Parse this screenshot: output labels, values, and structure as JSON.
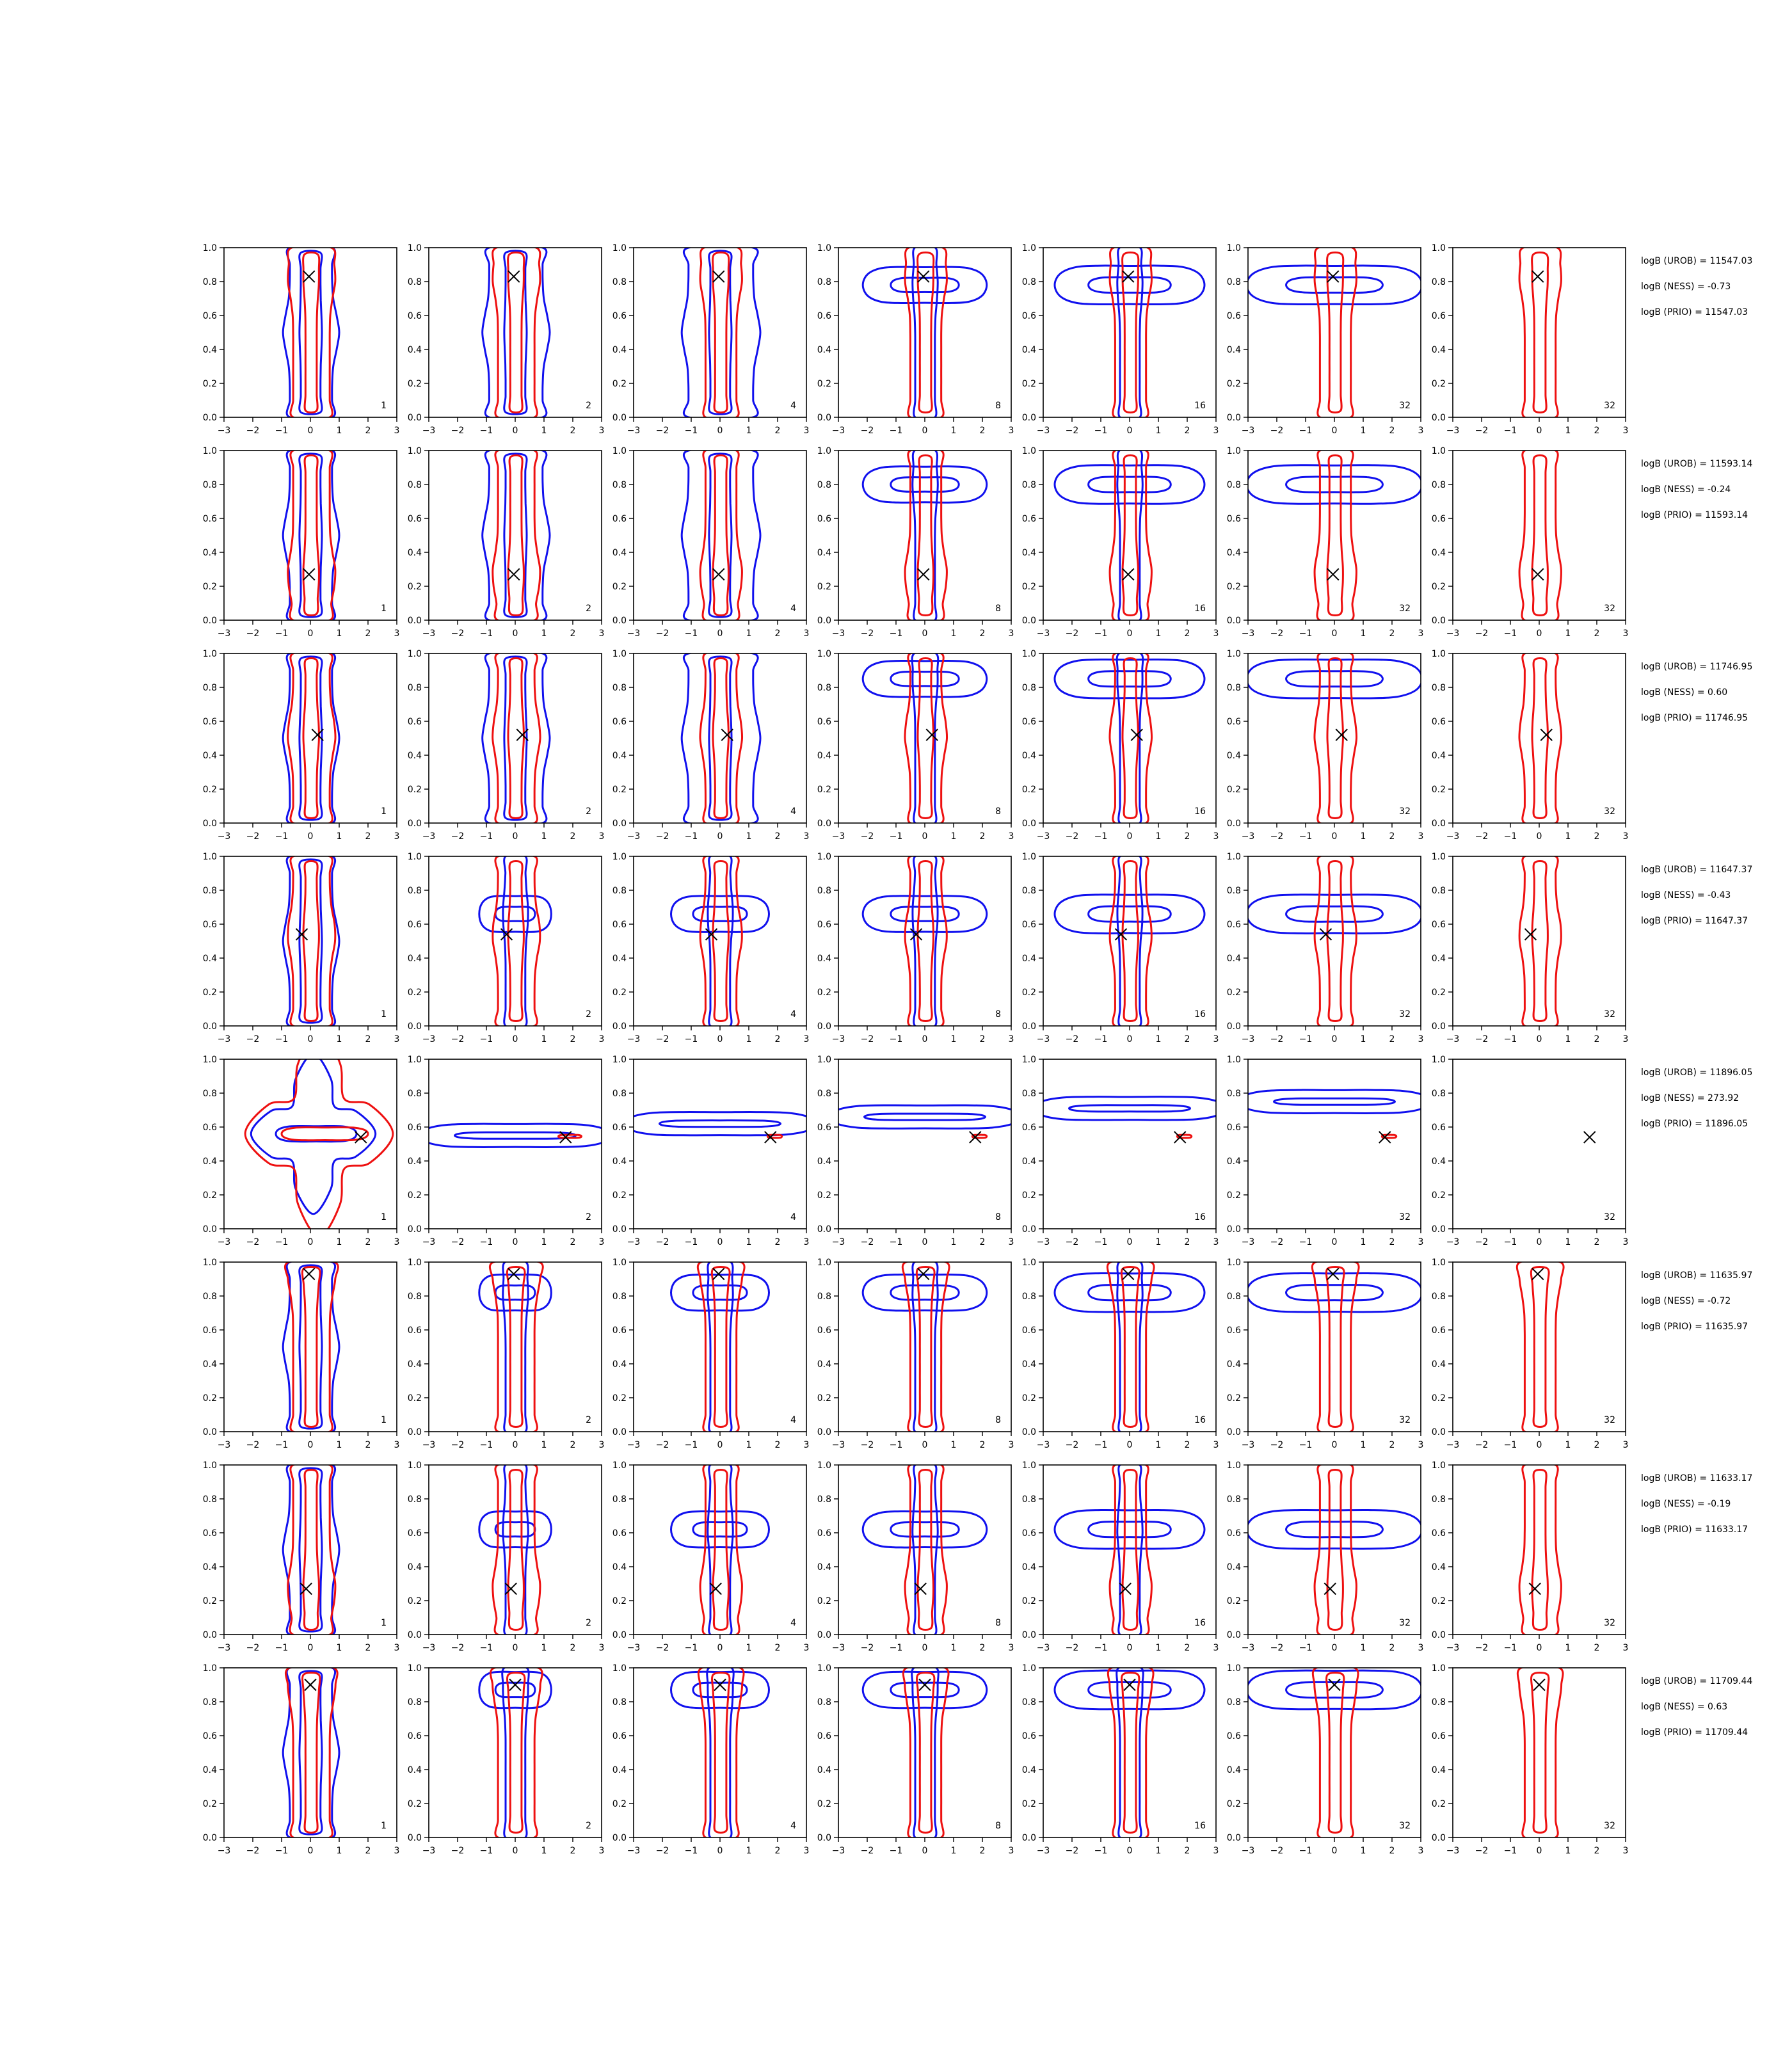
{
  "figure": {
    "x_ticks": [
      "−3",
      "−2",
      "−1",
      "0",
      "1",
      "2",
      "3"
    ],
    "y_ticks": [
      "0.0",
      "0.2",
      "0.4",
      "0.6",
      "0.8",
      "1.0"
    ],
    "panel_labels": [
      "1",
      "2",
      "4",
      "8",
      "16",
      "32",
      "32"
    ],
    "colors": {
      "blue": "#1010ee",
      "red": "#ee1010",
      "marker": "#000000"
    }
  },
  "chart_data": {
    "type": "contour-grid",
    "xlim": [
      -3,
      3
    ],
    "ylim": [
      0,
      1
    ],
    "rows": [
      {
        "marker": {
          "x": -0.05,
          "y": 0.83
        },
        "annotations": [
          "logB (UROB) = 11547.03",
          "logB (NESS) = -0.73",
          "logB (PRIO) = 11547.03"
        ]
      },
      {
        "marker": {
          "x": -0.05,
          "y": 0.27
        },
        "annotations": [
          "logB (UROB) = 11593.14",
          "logB (NESS) = -0.24",
          "logB (PRIO) = 11593.14"
        ]
      },
      {
        "marker": {
          "x": 0.25,
          "y": 0.52
        },
        "annotations": [
          "logB (UROB) = 11746.95",
          "logB (NESS) = 0.60",
          "logB (PRIO) = 11746.95"
        ]
      },
      {
        "marker": {
          "x": -0.3,
          "y": 0.54
        },
        "annotations": [
          "logB (UROB) = 11647.37",
          "logB (NESS) = -0.43",
          "logB (PRIO) = 11647.37"
        ]
      },
      {
        "marker": {
          "x": 1.75,
          "y": 0.54
        },
        "annotations": [
          "logB (UROB) = 11896.05",
          "logB (NESS) = 273.92",
          "logB (PRIO) = 11896.05"
        ]
      },
      {
        "marker": {
          "x": -0.05,
          "y": 0.93
        },
        "annotations": [
          "logB (UROB) = 11635.97",
          "logB (NESS) = -0.72",
          "logB (PRIO) = 11635.97"
        ]
      },
      {
        "marker": {
          "x": -0.15,
          "y": 0.27
        },
        "annotations": [
          "logB (UROB) = 11633.17",
          "logB (NESS) = -0.19",
          "logB (PRIO) = 11633.17"
        ]
      },
      {
        "marker": {
          "x": 0.0,
          "y": 0.9
        },
        "annotations": [
          "logB (UROB) = 11709.44",
          "logB (NESS) = 0.63",
          "logB (PRIO) = 11709.44"
        ]
      }
    ]
  }
}
